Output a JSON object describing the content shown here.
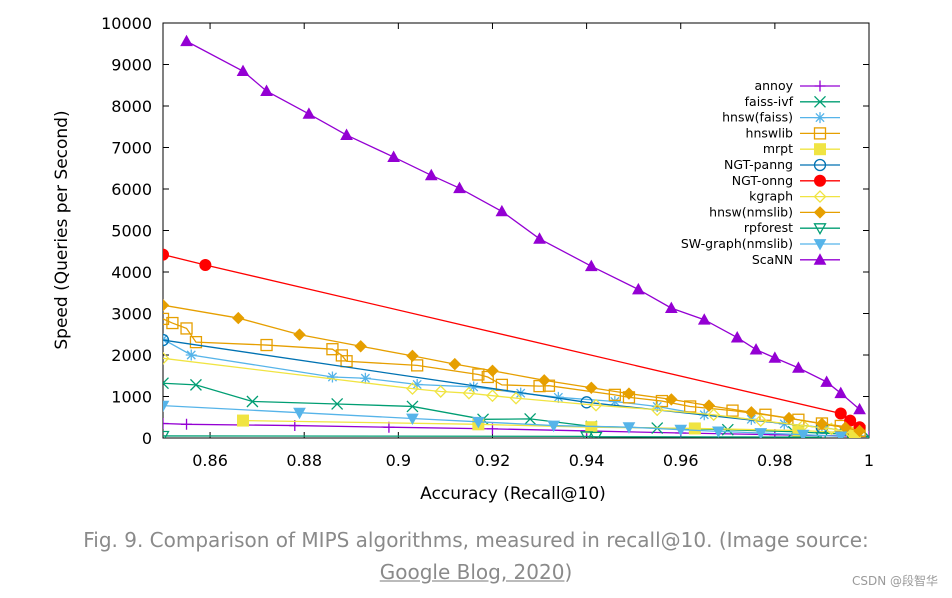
{
  "chart_data": {
    "type": "line",
    "title": "",
    "xlabel": "Accuracy (Recall@10)",
    "ylabel": "Speed (Queries per Second)",
    "xlim": [
      0.85,
      1.0
    ],
    "ylim": [
      0,
      10000
    ],
    "xticks": [
      0.86,
      0.88,
      0.9,
      0.92,
      0.94,
      0.96,
      0.98,
      1
    ],
    "xtick_labels": [
      "0.86",
      "0.88",
      "0.9",
      "0.92",
      "0.94",
      "0.96",
      "0.98",
      "1"
    ],
    "yticks": [
      0,
      1000,
      2000,
      3000,
      4000,
      5000,
      6000,
      7000,
      8000,
      9000,
      10000
    ],
    "ytick_labels": [
      "0",
      "1000",
      "2000",
      "3000",
      "4000",
      "5000",
      "6000",
      "7000",
      "8000",
      "9000",
      "10000"
    ],
    "grid": false,
    "legend_position": "top-right",
    "series": [
      {
        "name": "annoy",
        "color": "#9400d3",
        "marker": "plus",
        "x": [
          0.85,
          0.855,
          0.878,
          0.898,
          0.92,
          0.94,
          0.96,
          0.98,
          1.0
        ],
        "y": [
          350,
          330,
          300,
          260,
          220,
          170,
          120,
          80,
          40
        ]
      },
      {
        "name": "faiss-ivf",
        "color": "#009e73",
        "marker": "x",
        "x": [
          0.85,
          0.857,
          0.869,
          0.887,
          0.903,
          0.918,
          0.928,
          0.941,
          0.955,
          0.97,
          0.984,
          0.995,
          1.0
        ],
        "y": [
          1320,
          1280,
          880,
          820,
          760,
          450,
          460,
          280,
          240,
          200,
          150,
          90,
          30
        ]
      },
      {
        "name": "hnsw(faiss)",
        "color": "#56b4e9",
        "marker": "asterisk",
        "x": [
          0.85,
          0.856,
          0.886,
          0.893,
          0.904,
          0.916,
          0.926,
          0.934,
          0.946,
          0.955,
          0.965,
          0.975,
          0.982,
          0.99,
          0.996
        ],
        "y": [
          2380,
          2000,
          1470,
          1440,
          1290,
          1230,
          1080,
          980,
          880,
          760,
          560,
          450,
          340,
          260,
          150
        ]
      },
      {
        "name": "hnswlib",
        "color": "#e69f00",
        "marker": "square",
        "x": [
          0.85,
          0.852,
          0.855,
          0.857,
          0.872,
          0.886,
          0.888,
          0.889,
          0.904,
          0.917,
          0.919,
          0.922,
          0.93,
          0.932,
          0.946,
          0.949,
          0.956,
          0.962,
          0.971,
          0.978,
          0.985,
          0.99,
          0.994,
          0.996,
          0.998
        ],
        "y": [
          2870,
          2770,
          2640,
          2310,
          2240,
          2140,
          1990,
          1850,
          1750,
          1530,
          1470,
          1280,
          1250,
          1260,
          1040,
          980,
          890,
          760,
          660,
          560,
          440,
          350,
          290,
          230,
          170
        ]
      },
      {
        "name": "mrpt",
        "color": "#f0e442",
        "marker": "filled-square",
        "x": [
          0.867,
          0.917,
          0.941,
          0.963,
          0.985,
          0.997
        ],
        "y": [
          420,
          330,
          260,
          230,
          180,
          120
        ]
      },
      {
        "name": "NGT-panng",
        "color": "#0072b2",
        "marker": "circle",
        "x": [
          0.85,
          0.94,
          0.99
        ],
        "y": [
          2360,
          860,
          250
        ]
      },
      {
        "name": "NGT-onng",
        "color": "#ff0000",
        "marker": "filled-circle",
        "x": [
          0.85,
          0.859,
          0.994,
          0.996,
          0.998
        ],
        "y": [
          4420,
          4170,
          590,
          420,
          260
        ]
      },
      {
        "name": "kgraph",
        "color": "#f0e442",
        "marker": "diamond",
        "x": [
          0.85,
          0.903,
          0.909,
          0.915,
          0.92,
          0.925,
          0.942,
          0.955,
          0.967,
          0.977,
          0.986,
          0.992,
          0.996
        ],
        "y": [
          1920,
          1190,
          1120,
          1080,
          1020,
          960,
          790,
          680,
          560,
          420,
          300,
          220,
          140
        ]
      },
      {
        "name": "hnsw(nmslib)",
        "color": "#e69f00",
        "marker": "filled-diamond",
        "x": [
          0.85,
          0.866,
          0.879,
          0.892,
          0.903,
          0.912,
          0.92,
          0.931,
          0.941,
          0.949,
          0.958,
          0.966,
          0.975,
          0.983,
          0.99,
          0.995,
          0.998
        ],
        "y": [
          3200,
          2890,
          2490,
          2210,
          1980,
          1780,
          1620,
          1390,
          1210,
          1070,
          930,
          780,
          620,
          480,
          340,
          250,
          170
        ]
      },
      {
        "name": "rpforest",
        "color": "#009e73",
        "marker": "triangle-down",
        "x": [
          0.85,
          0.94,
          0.942,
          0.99
        ],
        "y": [
          50,
          40,
          30,
          20
        ]
      },
      {
        "name": "SW-graph(nmslib)",
        "color": "#56b4e9",
        "marker": "filled-triangle-down",
        "x": [
          0.85,
          0.879,
          0.903,
          0.917,
          0.933,
          0.949,
          0.96,
          0.968,
          0.977,
          0.986,
          0.994
        ],
        "y": [
          780,
          610,
          470,
          390,
          300,
          260,
          200,
          160,
          120,
          80,
          40
        ]
      },
      {
        "name": "ScaNN",
        "color": "#9400d3",
        "marker": "filled-triangle-up",
        "x": [
          0.855,
          0.867,
          0.872,
          0.881,
          0.889,
          0.899,
          0.907,
          0.913,
          0.922,
          0.93,
          0.941,
          0.951,
          0.958,
          0.965,
          0.972,
          0.976,
          0.98,
          0.985,
          0.991,
          0.994,
          0.998
        ],
        "y": [
          9560,
          8840,
          8360,
          7810,
          7300,
          6770,
          6330,
          6020,
          5460,
          4800,
          4140,
          3580,
          3130,
          2850,
          2420,
          2130,
          1930,
          1690,
          1350,
          1080,
          690
        ]
      }
    ]
  },
  "caption": {
    "line1": "Fig. 9. Comparison of MIPS algorithms, measured in recall@10. (Image source:",
    "link": "Google Blog, 2020",
    "line2_suffix": ")"
  },
  "watermark": "CSDN @段智华"
}
